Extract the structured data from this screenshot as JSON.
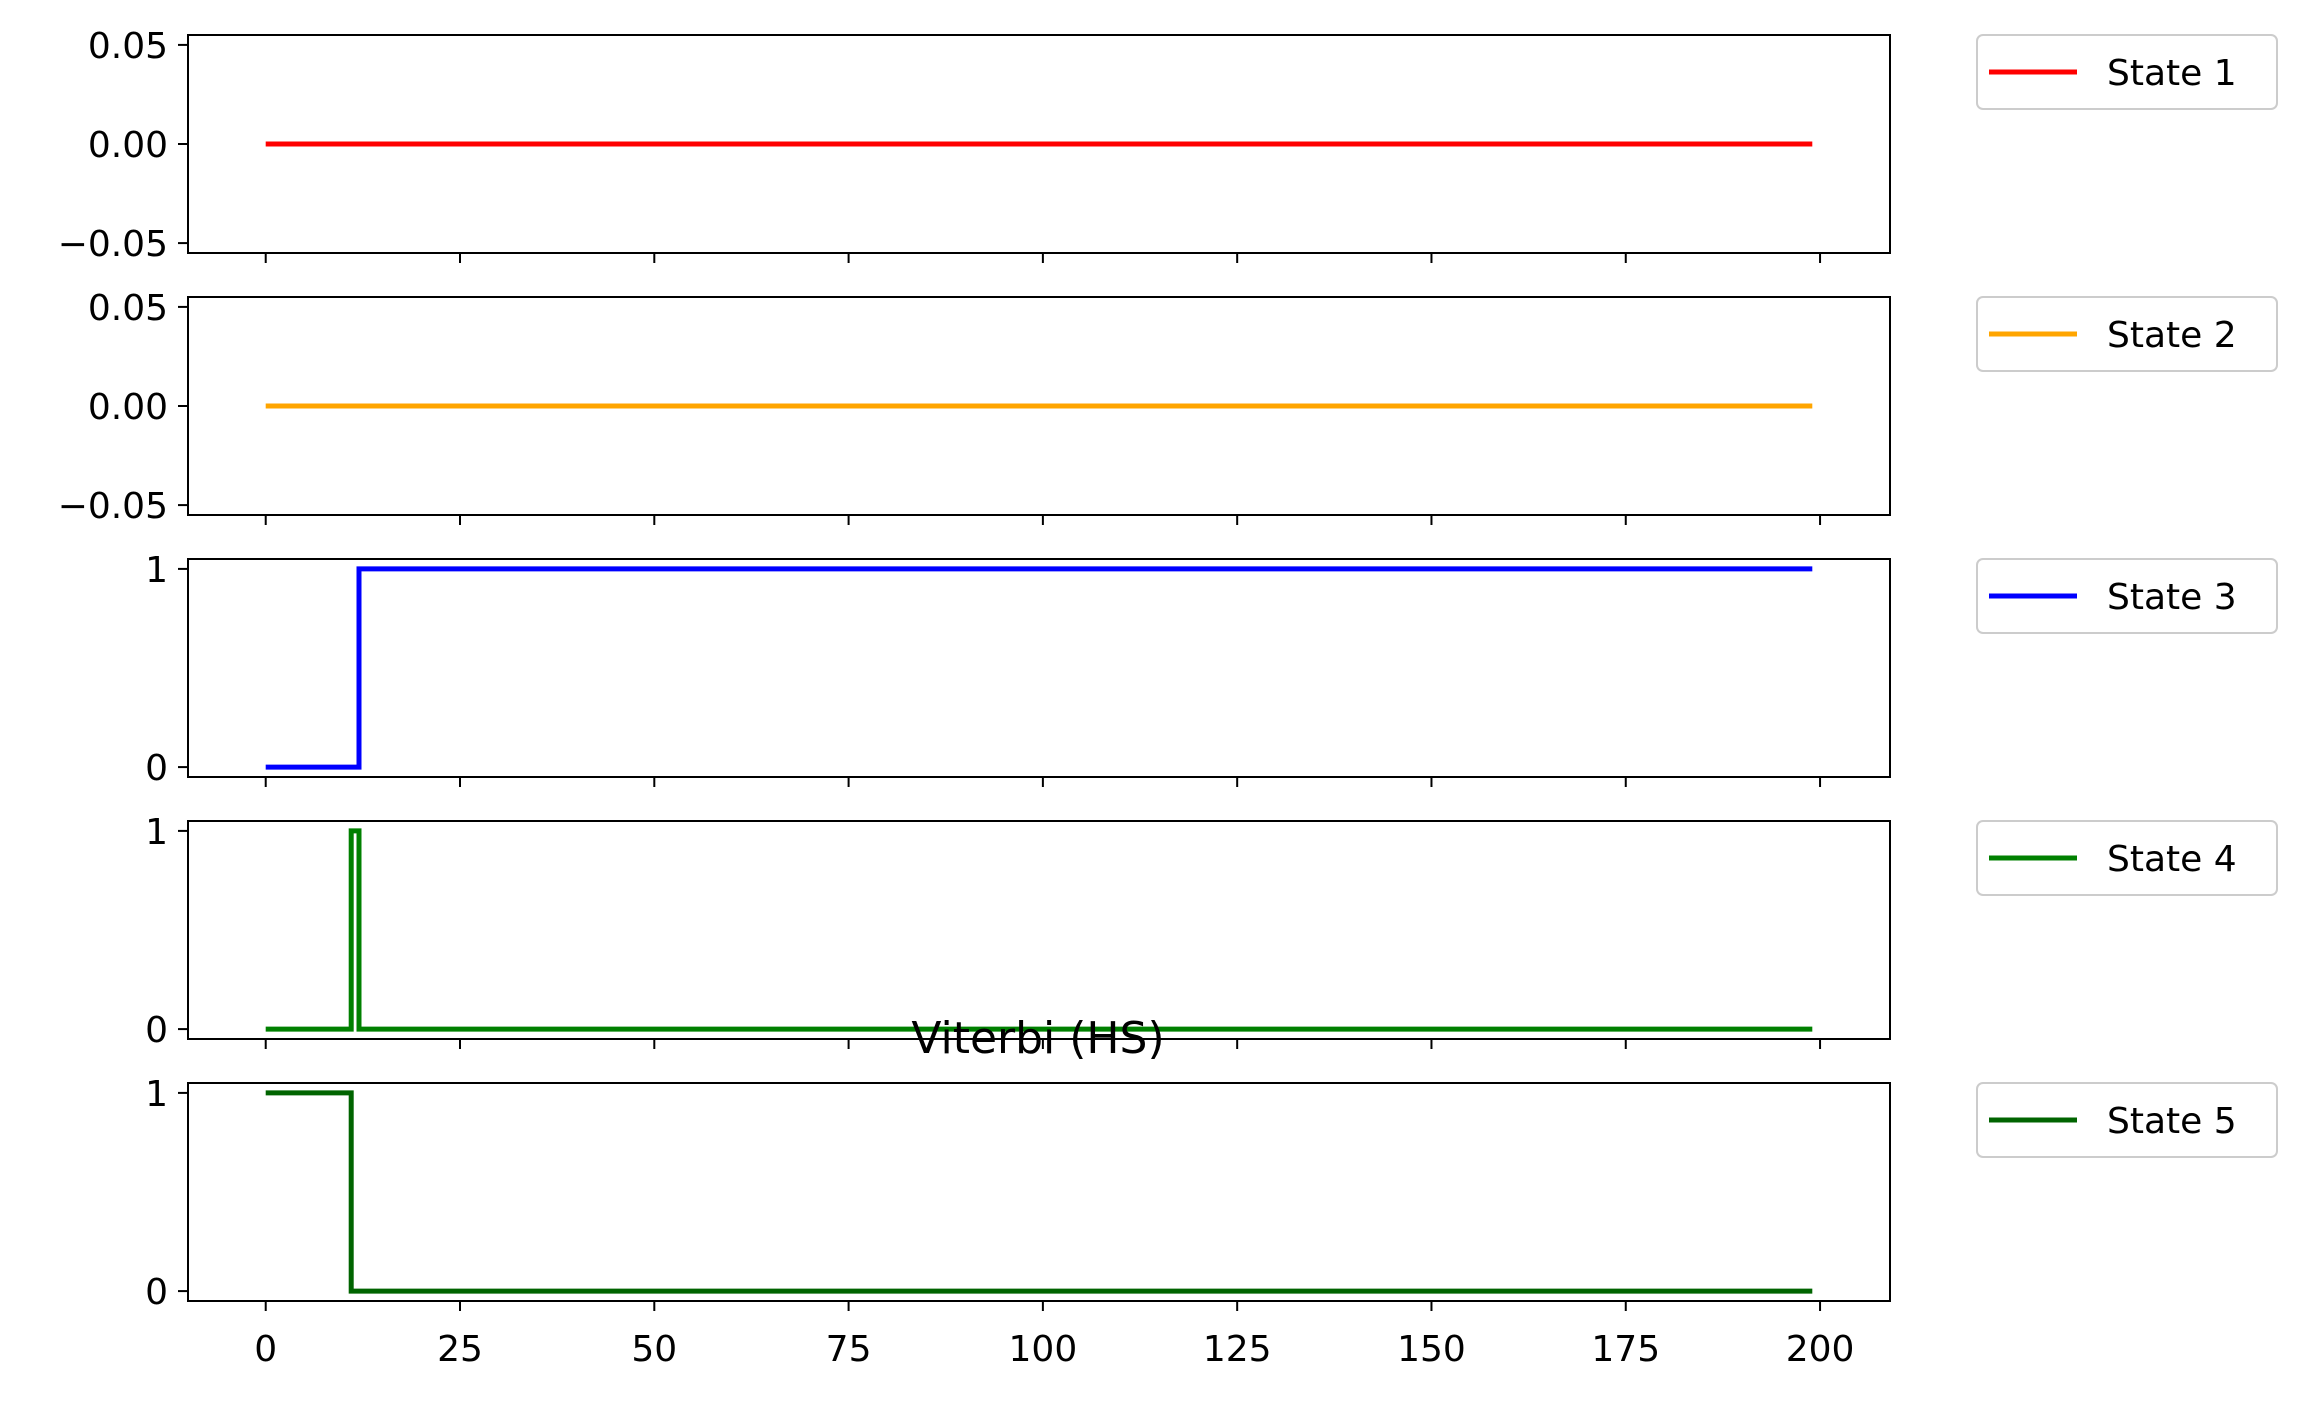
{
  "chart_data": {
    "type": "line",
    "title": "Viterbi (HS)",
    "shared_x": true,
    "xlim": [
      -10,
      209
    ],
    "x_ticks": [
      0,
      25,
      50,
      75,
      100,
      125,
      150,
      175,
      200
    ],
    "x_tick_labels": [
      "0",
      "25",
      "50",
      "75",
      "100",
      "125",
      "150",
      "175",
      "200"
    ],
    "legend_placement": "outside-right",
    "panels": [
      {
        "name": "State 1",
        "color": "#ff0000",
        "ylim": [
          -0.055,
          0.055
        ],
        "y_ticks": [
          -0.05,
          0.0,
          0.05
        ],
        "y_tick_labels": [
          "−0.05",
          "0.00",
          "0.05"
        ],
        "points": [
          [
            0,
            0
          ],
          [
            199,
            0
          ]
        ]
      },
      {
        "name": "State 2",
        "color": "#ffa500",
        "ylim": [
          -0.055,
          0.055
        ],
        "y_ticks": [
          -0.05,
          0.0,
          0.05
        ],
        "y_tick_labels": [
          "−0.05",
          "0.00",
          "0.05"
        ],
        "points": [
          [
            0,
            0
          ],
          [
            199,
            0
          ]
        ]
      },
      {
        "name": "State 3",
        "color": "#0000ff",
        "ylim": [
          -0.05,
          1.05
        ],
        "y_ticks": [
          0,
          1
        ],
        "y_tick_labels": [
          "0",
          "1"
        ],
        "points": [
          [
            0,
            0
          ],
          [
            12,
            0
          ],
          [
            12,
            1
          ],
          [
            199,
            1
          ]
        ]
      },
      {
        "name": "State 4",
        "color": "#008000",
        "ylim": [
          -0.05,
          1.05
        ],
        "y_ticks": [
          0,
          1
        ],
        "y_tick_labels": [
          "0",
          "1"
        ],
        "points": [
          [
            0,
            0
          ],
          [
            11,
            0
          ],
          [
            11,
            1
          ],
          [
            12,
            1
          ],
          [
            12,
            0
          ],
          [
            199,
            0
          ]
        ]
      },
      {
        "name": "State 5",
        "color": "#006400",
        "ylim": [
          -0.05,
          1.05
        ],
        "y_ticks": [
          0,
          1
        ],
        "y_tick_labels": [
          "0",
          "1"
        ],
        "points": [
          [
            0,
            1
          ],
          [
            11,
            1
          ],
          [
            11,
            0
          ],
          [
            199,
            0
          ]
        ]
      }
    ]
  }
}
